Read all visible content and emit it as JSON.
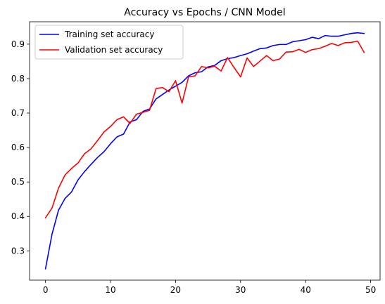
{
  "chart_data": {
    "type": "line",
    "title": "Accuracy vs Epochs / CNN Model",
    "xlabel": "",
    "ylabel": "",
    "xlim": [
      -2.45,
      51.45
    ],
    "ylim": [
      0.215,
      0.965
    ],
    "x_ticks": [
      0,
      10,
      20,
      30,
      40,
      50
    ],
    "y_ticks": [
      0.3,
      0.4,
      0.5,
      0.6,
      0.7,
      0.8,
      0.9
    ],
    "grid": false,
    "legend_position": "top-left",
    "x": [
      0,
      1,
      2,
      3,
      4,
      5,
      6,
      7,
      8,
      9,
      10,
      11,
      12,
      13,
      14,
      15,
      16,
      17,
      18,
      19,
      20,
      21,
      22,
      23,
      24,
      25,
      26,
      27,
      28,
      29,
      30,
      31,
      32,
      33,
      34,
      35,
      36,
      37,
      38,
      39,
      40,
      41,
      42,
      43,
      44,
      45,
      46,
      47,
      48,
      49
    ],
    "series": [
      {
        "name": "Training set accuracy",
        "color": "#0000ff",
        "values": [
          0.248,
          0.348,
          0.418,
          0.452,
          0.471,
          0.506,
          0.53,
          0.551,
          0.571,
          0.588,
          0.611,
          0.631,
          0.639,
          0.674,
          0.681,
          0.705,
          0.712,
          0.741,
          0.754,
          0.767,
          0.778,
          0.789,
          0.808,
          0.817,
          0.82,
          0.834,
          0.838,
          0.852,
          0.858,
          0.861,
          0.867,
          0.872,
          0.88,
          0.887,
          0.889,
          0.896,
          0.899,
          0.899,
          0.907,
          0.91,
          0.913,
          0.92,
          0.916,
          0.925,
          0.923,
          0.923,
          0.927,
          0.931,
          0.933,
          0.931
        ]
      },
      {
        "name": "Validation set accuracy",
        "color": "#ff0000",
        "values": [
          0.396,
          0.424,
          0.482,
          0.52,
          0.539,
          0.555,
          0.582,
          0.596,
          0.62,
          0.645,
          0.661,
          0.681,
          0.689,
          0.67,
          0.697,
          0.702,
          0.708,
          0.771,
          0.774,
          0.762,
          0.794,
          0.729,
          0.805,
          0.808,
          0.835,
          0.831,
          0.836,
          0.822,
          0.861,
          0.832,
          0.805,
          0.86,
          0.835,
          0.851,
          0.867,
          0.852,
          0.857,
          0.877,
          0.878,
          0.885,
          0.876,
          0.884,
          0.887,
          0.894,
          0.902,
          0.896,
          0.904,
          0.905,
          0.909,
          0.876
        ]
      }
    ]
  }
}
